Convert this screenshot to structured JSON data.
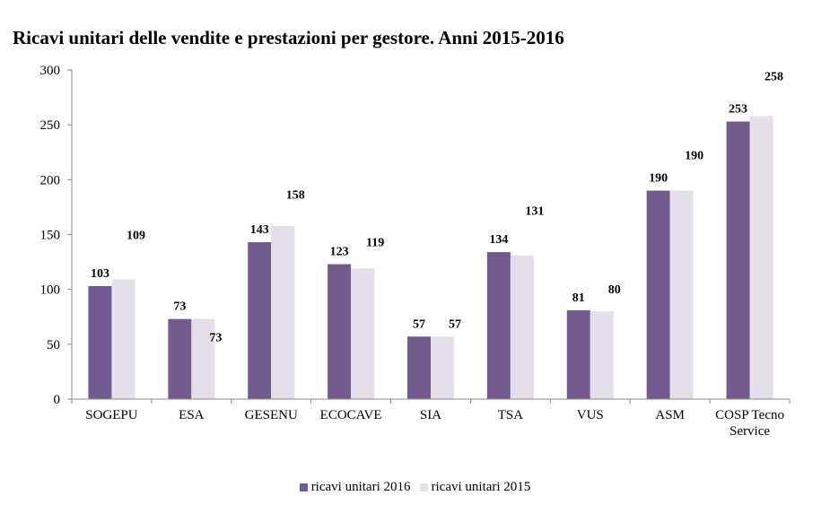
{
  "chart_data": {
    "type": "bar",
    "title": "Ricavi unitari delle vendite e prestazioni per gestore. Anni 2015-2016",
    "categories": [
      "SOGEPU",
      "ESA",
      "GESENU",
      "ECOCAVE",
      "SIA",
      "TSA",
      "VUS",
      "ASM",
      "COSP Tecno Service"
    ],
    "series": [
      {
        "name": "ricavi unitari 2016",
        "color": "#735B90",
        "values": [
          103,
          73,
          143,
          123,
          57,
          134,
          81,
          190,
          253
        ],
        "labels": [
          "103",
          "73",
          "143",
          "123",
          "57",
          "134",
          "81",
          "190",
          "253"
        ]
      },
      {
        "name": "ricavi unitari 2015",
        "color": "#E5DFEC",
        "values": [
          109,
          73,
          158,
          119,
          57,
          131,
          80,
          190,
          258
        ],
        "labels": [
          "109",
          "73",
          "158",
          "119",
          "57",
          "131",
          "80",
          "190",
          "258"
        ]
      }
    ],
    "ylim": [
      0,
      300
    ],
    "yticks": [
      0,
      50,
      100,
      150,
      200,
      250,
      300
    ],
    "ytick_labels": [
      "0",
      "50",
      "100",
      "150",
      "200",
      "250",
      "300"
    ],
    "xlabel": "",
    "ylabel": "",
    "grid": false,
    "legend_position": "bottom-center"
  }
}
